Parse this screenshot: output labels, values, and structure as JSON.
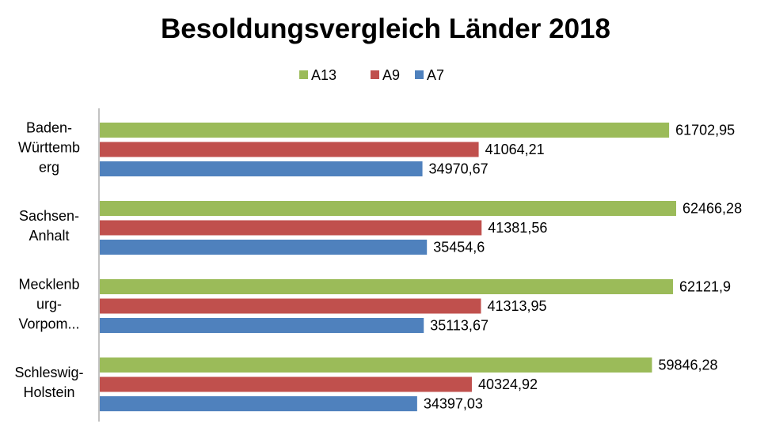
{
  "chart_data": {
    "type": "bar",
    "orientation": "horizontal",
    "title": "Besoldungsvergleich Länder 2018",
    "categories": [
      [
        "Baden-",
        "Württemb",
        "erg"
      ],
      [
        "Sachsen-",
        "Anhalt"
      ],
      [
        "Mecklenb",
        "urg-",
        "Vorpom..."
      ],
      [
        "Schleswig-",
        "Holstein"
      ]
    ],
    "series": [
      {
        "name": "A13",
        "color": "#9bbb59",
        "values": [
          61702.95,
          62466.28,
          62121.9,
          59846.28
        ],
        "labels": [
          "61702,95",
          "62466,28",
          "62121,9",
          "59846,28"
        ]
      },
      {
        "name": "A9",
        "color": "#c0504d",
        "values": [
          41064.21,
          41381.56,
          41313.95,
          40324.92
        ],
        "labels": [
          "41064,21",
          "41381,56",
          "41313,95",
          "40324,92"
        ]
      },
      {
        "name": "A7",
        "color": "#4f81bd",
        "values": [
          34970.67,
          35454.6,
          35113.67,
          34397.03
        ],
        "labels": [
          "34970,67",
          "35454,6",
          "35113,67",
          "34397,03"
        ]
      }
    ],
    "legend_position": "top",
    "xlim": [
      0,
      70000
    ],
    "grid": false,
    "axis_visible": false,
    "data_labels": true
  }
}
